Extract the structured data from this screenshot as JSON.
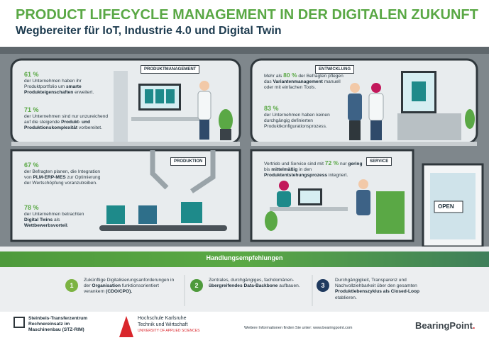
{
  "header": {
    "title": "PRODUCT LIFECYCLE MANAGEMENT IN DER DIGITALEN ZUKUNFT",
    "subtitle": "Wegbereiter für IoT, Industrie 4.0 und Digital Twin"
  },
  "rooms": [
    {
      "label": "PRODUKTMANAGEMENT",
      "blocks": [
        {
          "figure": "61 %",
          "text": [
            "der Unternehmen haben ihr Produktportfolio um ",
            "smarte Produkteigenschaften",
            " erweitert."
          ]
        },
        {
          "figure": "71 %",
          "text": [
            "der Unternehmen sind nur unzureichend auf die steigende ",
            "Produkt- und Produktionskomplexität",
            " vorbereitet."
          ]
        }
      ]
    },
    {
      "label": "ENTWICKLUNG",
      "blocks": [
        {
          "text": [
            "Mehr als ",
            "80 %",
            " der Befragten pflegen das ",
            "Variantenmanagement",
            " manuell oder mit einfachen Tools."
          ]
        },
        {
          "figure": "83 %",
          "text": [
            "der Unternehmen haben keinen durchgängig definierten Produktkonfigurationsprozess."
          ]
        }
      ]
    },
    {
      "label": "PRODUKTION",
      "blocks": [
        {
          "figure": "67 %",
          "text": [
            "der Befragten planen, die Integration von ",
            "PLM-ERP-MES",
            " zur Optimierung der Wertschöpfung voranzutreiben."
          ]
        },
        {
          "figure": "78 %",
          "text": [
            "der Unternehmen betrachten ",
            "Digital Twins",
            " als ",
            "Wettbewerbsvorteil",
            "."
          ]
        }
      ]
    },
    {
      "label": "SERVICE",
      "blocks": [
        {
          "text": [
            "Vertrieb und Service sind mit ",
            "72 %",
            " nur ",
            "gering",
            " bis ",
            "mittelmäßig",
            " in den ",
            "Produktentstehungsprozess",
            " integriert."
          ]
        }
      ]
    }
  ],
  "door": {
    "sign": "OPEN"
  },
  "recommendations": {
    "title": "Handlungsempfehlungen",
    "items": [
      {
        "number": "1",
        "text": [
          "Zukünftige Digitalisierungsanforderungen in der ",
          "Organisation",
          " funktionsorientiert verankern ",
          "(CDO/CPO)."
        ]
      },
      {
        "number": "2",
        "text": [
          "Zentrales, durchgängiges, fachdomänen-",
          "übergreifendes Data-Backbone",
          " aufbauen."
        ]
      },
      {
        "number": "3",
        "text": [
          "Durchgängigkeit, Transparenz und Nachvollziehbarkeit über den gesamten ",
          "Produktlebenszyklus als Closed-Loop",
          " etablieren."
        ]
      }
    ]
  },
  "footer": {
    "steinbeis": [
      "Steinbeis-Transferzentrum",
      "Rechnereinsatz im",
      "Maschinenbau (STZ-RIM)"
    ],
    "hochschule": [
      "Hochschule Karlsruhe",
      "Technik und Wirtschaft",
      "UNIVERSITY OF APPLIED SCIENCES"
    ],
    "info": "Weitere Informationen finden Sie unter: www.bearingpoint.com",
    "brand": "BearingPoint",
    "brand_dot": "."
  }
}
